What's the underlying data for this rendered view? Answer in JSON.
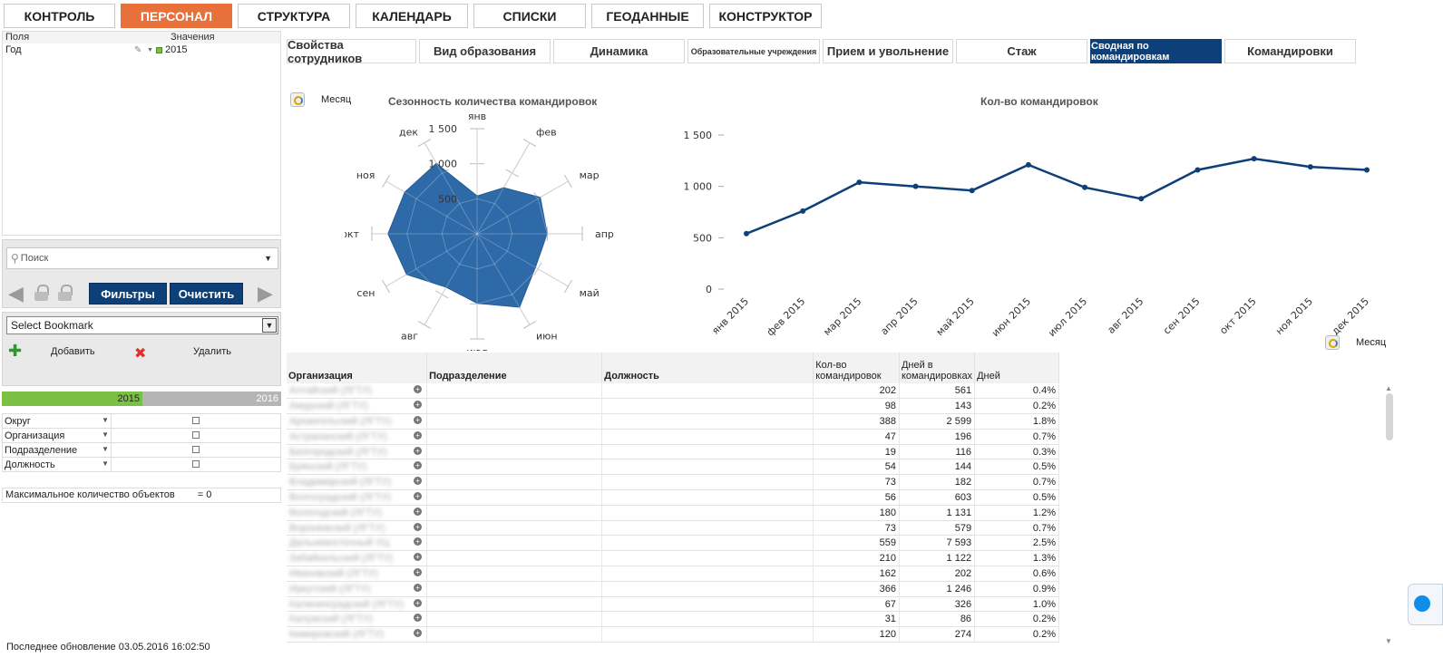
{
  "topnav": [
    {
      "label": "КОНТРОЛЬ",
      "active": false
    },
    {
      "label": "ПЕРСОНАЛ",
      "active": true
    },
    {
      "label": "СТРУКТУРА",
      "active": false
    },
    {
      "label": "КАЛЕНДАРЬ",
      "active": false
    },
    {
      "label": "СПИСКИ",
      "active": false
    },
    {
      "label": "ГЕОДАННЫЕ",
      "active": false
    },
    {
      "label": "КОНСТРУКТОР",
      "active": false
    }
  ],
  "fields": {
    "col_fields": "Поля",
    "col_values": "Значения",
    "rows": [
      {
        "field": "Год",
        "value": "2015"
      }
    ]
  },
  "search": {
    "placeholder": "Поиск",
    "filters_label": "Фильтры",
    "clear_label": "Очистить"
  },
  "bookmark": {
    "select_label": "Select Bookmark",
    "add_label": "Добавить",
    "delete_label": "Удалить"
  },
  "years": {
    "left": "2015",
    "right": "2016"
  },
  "dimensions": [
    "Округ",
    "Организация",
    "Подразделение",
    "Должность"
  ],
  "max_objects": {
    "label": "Максимальное количество объектов",
    "value": "=  0"
  },
  "last_update": "Последнее обновление 03.05.2016 16:02:50",
  "subtabs": [
    {
      "label": "Свойства сотрудников",
      "active": false
    },
    {
      "label": "Вид образования",
      "active": false
    },
    {
      "label": "Динамика",
      "active": false
    },
    {
      "label": "Образовательные учреждения",
      "active": false
    },
    {
      "label": "Прием и увольнение",
      "active": false
    },
    {
      "label": "Стаж",
      "active": false
    },
    {
      "label": "Сводная по командировкам",
      "active": true
    },
    {
      "label": "Командировки",
      "active": false
    }
  ],
  "month_label": "Месяц",
  "chart_data": [
    {
      "type": "radar",
      "title": "Сезонность количества командировок",
      "categories": [
        "янв",
        "фев",
        "мар",
        "апр",
        "май",
        "июн",
        "июл",
        "авг",
        "сен",
        "окт",
        "ноя",
        "дек"
      ],
      "values": [
        540,
        760,
        1040,
        1000,
        960,
        1210,
        990,
        880,
        1160,
        1270,
        1190,
        1160
      ],
      "rlim": [
        0,
        1500
      ],
      "rticks": [
        "500",
        "1 000",
        "1 500"
      ],
      "color": "#2f6aa8"
    },
    {
      "type": "line",
      "title": "Кол-во командировок",
      "categories": [
        "янв 2015",
        "фев 2015",
        "мар 2015",
        "апр 2015",
        "май 2015",
        "июн 2015",
        "июл 2015",
        "авг 2015",
        "сен 2015",
        "окт 2015",
        "ноя 2015",
        "дек 2015"
      ],
      "values": [
        540,
        760,
        1040,
        1000,
        960,
        1210,
        990,
        880,
        1160,
        1270,
        1190,
        1160
      ],
      "ylim": [
        0,
        1500
      ],
      "yticks": [
        "0",
        "500",
        "1 000",
        "1 500"
      ],
      "color": "#0d3f78"
    }
  ],
  "table": {
    "headers": {
      "org": "Организация",
      "dept": "Подразделение",
      "pos": "Должность",
      "count_a": "Кол-во",
      "count_b": "командировок",
      "days_a": "Дней в",
      "days_b": "командировках",
      "days": "Дней"
    },
    "rows": [
      {
        "org": "Алтайский (ЛГТУ)",
        "count": "202",
        "days": "561",
        "pct": "0.4%"
      },
      {
        "org": "Амурский (ЛГТУ)",
        "count": "98",
        "days": "143",
        "pct": "0.2%"
      },
      {
        "org": "Архангельский (ЛГТУ)",
        "count": "388",
        "days": "2 599",
        "pct": "1.8%"
      },
      {
        "org": "Астраханский (ЛГТУ)",
        "count": "47",
        "days": "196",
        "pct": "0.7%"
      },
      {
        "org": "Белгородский (ЛГТУ)",
        "count": "19",
        "days": "116",
        "pct": "0.3%"
      },
      {
        "org": "Брянский (ЛГТУ)",
        "count": "54",
        "days": "144",
        "pct": "0.5%"
      },
      {
        "org": "Владимирский (ЛГТУ)",
        "count": "73",
        "days": "182",
        "pct": "0.7%"
      },
      {
        "org": "Волгоградский (ЛГТУ)",
        "count": "56",
        "days": "603",
        "pct": "0.5%"
      },
      {
        "org": "Вологодский (ЛГТУ)",
        "count": "180",
        "days": "1 131",
        "pct": "1.2%"
      },
      {
        "org": "Воронежский (ЛГТУ)",
        "count": "73",
        "days": "579",
        "pct": "0.7%"
      },
      {
        "org": "Дальневосточный УЦ",
        "count": "559",
        "days": "7 593",
        "pct": "2.5%"
      },
      {
        "org": "Забайкальский (ЛГТУ)",
        "count": "210",
        "days": "1 122",
        "pct": "1.3%"
      },
      {
        "org": "Ивановский (ЛГТУ)",
        "count": "162",
        "days": "202",
        "pct": "0.6%"
      },
      {
        "org": "Иркутский (ЛГТУ)",
        "count": "366",
        "days": "1 246",
        "pct": "0.9%"
      },
      {
        "org": "Калининградский (ЛГТУ)",
        "count": "67",
        "days": "326",
        "pct": "1.0%"
      },
      {
        "org": "Калужский (ЛГТУ)",
        "count": "31",
        "days": "86",
        "pct": "0.2%"
      },
      {
        "org": "Кемеровский (ЛГТУ)",
        "count": "120",
        "days": "274",
        "pct": "0.2%"
      }
    ]
  }
}
